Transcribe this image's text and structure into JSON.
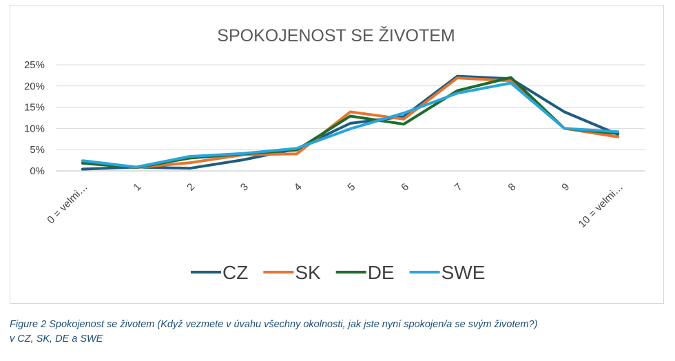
{
  "chart_data": {
    "type": "line",
    "title": "SPOKOJENOST SE ŽIVOTEM",
    "xlabel": "",
    "ylabel": "",
    "categories": [
      "0 = velmi…",
      "1",
      "2",
      "3",
      "4",
      "5",
      "6",
      "7",
      "8",
      "9",
      "10 = velmi…"
    ],
    "yticks": [
      "0%",
      "5%",
      "10%",
      "15%",
      "20%",
      "25%"
    ],
    "ylim": [
      0,
      25
    ],
    "grid": true,
    "legend_position": "bottom",
    "series": [
      {
        "name": "CZ",
        "color": "#1f5c80",
        "values": [
          0.4,
          0.9,
          0.6,
          2.6,
          5.2,
          11.2,
          12.8,
          22.3,
          21.7,
          13.9,
          8.6
        ]
      },
      {
        "name": "SK",
        "color": "#e8742f",
        "values": [
          1.9,
          0.8,
          1.9,
          3.8,
          4.0,
          13.9,
          12.2,
          21.9,
          21.2,
          10.0,
          8.0
        ]
      },
      {
        "name": "DE",
        "color": "#1e6b2e",
        "values": [
          1.8,
          0.8,
          3.0,
          4.0,
          4.9,
          12.9,
          11.0,
          18.9,
          22.0,
          10.0,
          8.8
        ]
      },
      {
        "name": "SWE",
        "color": "#2aa5dc",
        "values": [
          2.4,
          0.9,
          3.4,
          4.1,
          5.3,
          9.9,
          13.6,
          18.3,
          20.7,
          10.0,
          9.2
        ]
      }
    ]
  },
  "caption": {
    "line1": "Figure 2 Spokojenost se životem (Když vezmete v úvahu všechny okolnosti, jak jste nyní spokojen/a se svým životem?)",
    "line2": "v CZ, SK, DE a SWE"
  }
}
